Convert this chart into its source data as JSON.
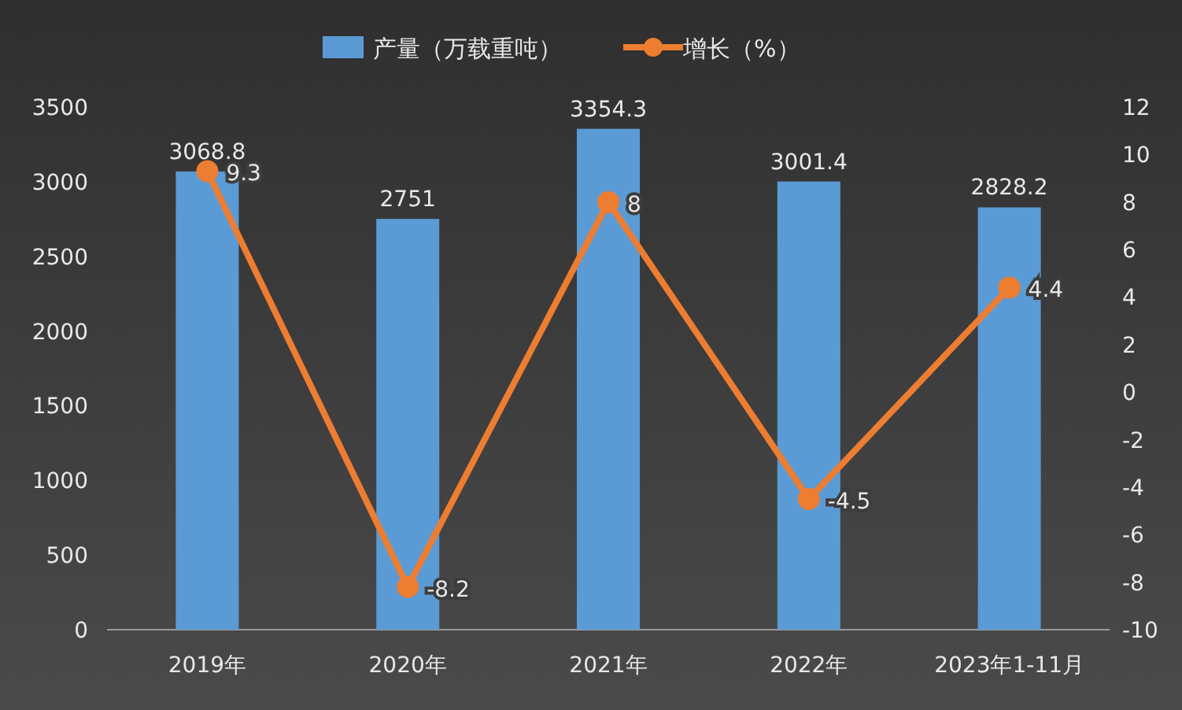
{
  "chart_data": {
    "type": "bar",
    "categories": [
      "2019年",
      "2020年",
      "2021年",
      "2022年",
      "2023年1-11月"
    ],
    "series": [
      {
        "name": "产量（万载重吨）",
        "color": "#5b9bd5",
        "values": [
          3068.8,
          2751,
          3354.3,
          3001.4,
          2828.2
        ]
      },
      {
        "name": "增长（%）",
        "type": "line",
        "axis": "y2",
        "color": "#ed7d31",
        "values": [
          9.3,
          -8.2,
          8,
          -4.5,
          4.4
        ]
      }
    ],
    "ylim": [
      0,
      3500
    ],
    "yticks": [
      0,
      500,
      1000,
      1500,
      2000,
      2500,
      3000,
      3500
    ],
    "y2lim": [
      -10,
      12
    ],
    "y2ticks": [
      -10,
      -8,
      -6,
      -4,
      -2,
      0,
      2,
      4,
      6,
      8,
      10,
      12
    ],
    "legend": "top",
    "data_labels": true,
    "marker": "circle"
  }
}
